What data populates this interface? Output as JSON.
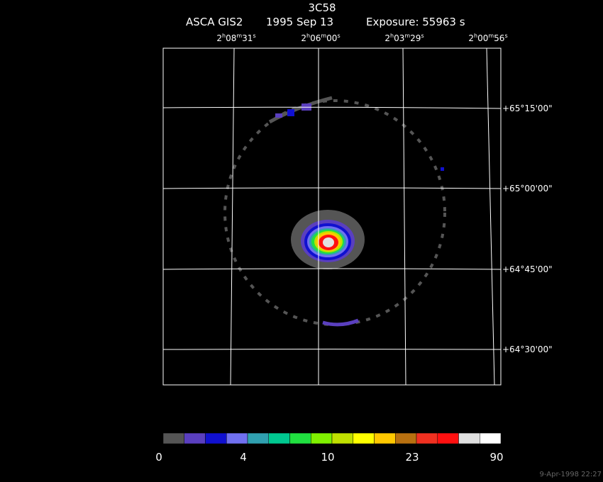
{
  "header": {
    "title": "3C58",
    "instrument": "ASCA GIS2",
    "date": "1995 Sep 13",
    "exposure": "Exposure: 55963 s"
  },
  "ra_labels": [
    [
      "2",
      "h",
      "08",
      "m",
      "31",
      "s"
    ],
    [
      "2",
      "h",
      "06",
      "m",
      "00",
      "s"
    ],
    [
      "2",
      "h",
      "03",
      "m",
      "29",
      "s"
    ],
    [
      "2",
      "h",
      "00",
      "m",
      "56",
      "s"
    ]
  ],
  "dec_labels": [
    "+65°15'00\"",
    "+65°00'00\"",
    "+64°45'00\"",
    "+64°30'00\""
  ],
  "colorbar": {
    "colors": [
      "#555555",
      "#5a3fbf",
      "#1010d0",
      "#7070f0",
      "#30a0b0",
      "#00c890",
      "#20e040",
      "#80f000",
      "#c0e000",
      "#ffff00",
      "#ffc800",
      "#b87010",
      "#f03020",
      "#ff1010",
      "#e0e0e0",
      "#ffffff"
    ],
    "ticks": [
      0,
      4,
      10,
      23,
      90
    ]
  },
  "timestamp": "9-Apr-1998 22:27"
}
